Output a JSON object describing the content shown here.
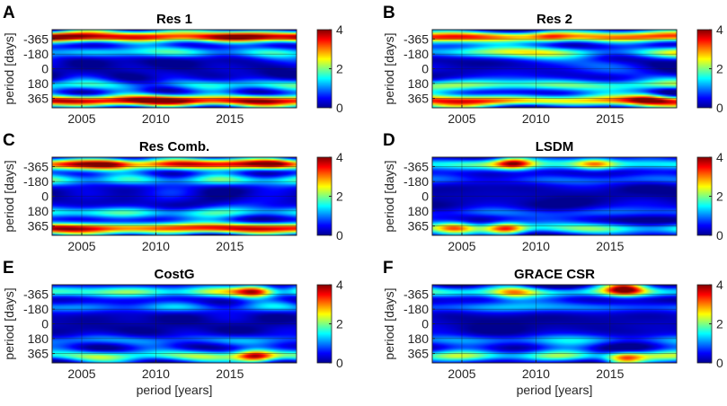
{
  "figure": {
    "shared": {
      "ylabel": "period [days]",
      "xlabel": "period [years]",
      "x_ticks": [
        2005,
        2010,
        2015
      ],
      "y_ticks": [
        "-365",
        "-180",
        "0",
        "180",
        "365"
      ],
      "y_tick_values": [
        -365,
        -180,
        0,
        180,
        365
      ],
      "colorbar_ticks": [
        "0",
        "2",
        "4"
      ],
      "colorbar_range": [
        0,
        4
      ],
      "colormap": "jet",
      "colormap_stops": [
        "#00008f",
        "#0000ff",
        "#00ffff",
        "#ffff00",
        "#ff0000",
        "#800000"
      ],
      "grid": "on"
    }
  },
  "chart_data": [
    {
      "type": "heatmap",
      "letter": "A",
      "title": "Res 1",
      "x_range": [
        2003,
        2019.5
      ],
      "y_range": [
        -480,
        480
      ],
      "xlabel": "",
      "ylabel": "period [days]",
      "clim": [
        0,
        4
      ],
      "x_ticks": [
        2005,
        2010,
        2015
      ],
      "y_ticks": [
        -365,
        -180,
        0,
        180,
        365
      ],
      "features": {
        "outer_band": 3.8,
        "mid_band": 1.3,
        "core": 0.2,
        "texture": 0.8,
        "seed": 1
      },
      "hotspots": []
    },
    {
      "type": "heatmap",
      "letter": "B",
      "title": "Res 2",
      "x_range": [
        2003,
        2019.5
      ],
      "y_range": [
        -480,
        480
      ],
      "xlabel": "",
      "ylabel": "period [days]",
      "clim": [
        0,
        4
      ],
      "x_ticks": [
        2005,
        2010,
        2015
      ],
      "y_ticks": [
        -365,
        -180,
        0,
        180,
        365
      ],
      "features": {
        "outer_band": 3.0,
        "mid_band": 1.6,
        "core": 0.4,
        "texture": 1.3,
        "seed": 2
      },
      "hotspots": [
        {
          "x": 2017.5,
          "y": 365,
          "v": 1.2
        },
        {
          "x": 2011,
          "y": -380,
          "v": 0.8
        }
      ]
    },
    {
      "type": "heatmap",
      "letter": "C",
      "title": "Res Comb.",
      "x_range": [
        2003,
        2019.5
      ],
      "y_range": [
        -480,
        480
      ],
      "xlabel": "",
      "ylabel": "period [days]",
      "clim": [
        0,
        4
      ],
      "x_ticks": [
        2005,
        2010,
        2015
      ],
      "y_ticks": [
        -365,
        -180,
        0,
        180,
        365
      ],
      "features": {
        "outer_band": 3.4,
        "mid_band": 1.3,
        "core": 0.3,
        "texture": 1.0,
        "seed": 3
      },
      "hotspots": [
        {
          "x": 2007,
          "y": -400,
          "v": 0.8
        },
        {
          "x": 2018,
          "y": -400,
          "v": 0.9
        }
      ]
    },
    {
      "type": "heatmap",
      "letter": "D",
      "title": "LSDM",
      "x_range": [
        2003,
        2019.5
      ],
      "y_range": [
        -480,
        480
      ],
      "xlabel": "",
      "ylabel": "period [days]",
      "clim": [
        0,
        4
      ],
      "x_ticks": [
        2005,
        2010,
        2015
      ],
      "y_ticks": [
        -365,
        -180,
        0,
        180,
        365
      ],
      "features": {
        "outer_band": 1.6,
        "mid_band": 0.7,
        "core": 0.15,
        "texture": 0.6,
        "seed": 4
      },
      "hotspots": [
        {
          "x": 2008.5,
          "y": -410,
          "v": 2.4
        },
        {
          "x": 2008,
          "y": 400,
          "v": 2.2
        },
        {
          "x": 2004.5,
          "y": 390,
          "v": 1.6
        },
        {
          "x": 2014,
          "y": -400,
          "v": 1.5
        }
      ]
    },
    {
      "type": "heatmap",
      "letter": "E",
      "title": "CostG",
      "x_range": [
        2003,
        2019.5
      ],
      "y_range": [
        -480,
        480
      ],
      "xlabel": "period [years]",
      "ylabel": "period [days]",
      "clim": [
        0,
        4
      ],
      "x_ticks": [
        2005,
        2010,
        2015
      ],
      "y_ticks": [
        -365,
        -180,
        0,
        180,
        365
      ],
      "features": {
        "outer_band": 1.7,
        "mid_band": 0.9,
        "core": 0.15,
        "texture": 0.7,
        "seed": 5
      },
      "hotspots": [
        {
          "x": 2016.7,
          "y": -400,
          "v": 2.6
        },
        {
          "x": 2016.7,
          "y": 400,
          "v": 2.6
        }
      ]
    },
    {
      "type": "heatmap",
      "letter": "F",
      "title": "GRACE CSR",
      "x_range": [
        2003,
        2019.5
      ],
      "y_range": [
        -480,
        480
      ],
      "xlabel": "period [years]",
      "ylabel": "period [days]",
      "clim": [
        0,
        4
      ],
      "x_ticks": [
        2005,
        2010,
        2015
      ],
      "y_ticks": [
        -365,
        -180,
        0,
        180,
        365
      ],
      "features": {
        "outer_band": 1.7,
        "mid_band": 0.9,
        "core": 0.15,
        "texture": 0.7,
        "seed": 6
      },
      "hotspots": [
        {
          "x": 2016,
          "y": -430,
          "v": 2.4
        },
        {
          "x": 2016,
          "y": 430,
          "v": 2.4
        },
        {
          "x": 2008.5,
          "y": -380,
          "v": 1.0
        }
      ]
    }
  ]
}
